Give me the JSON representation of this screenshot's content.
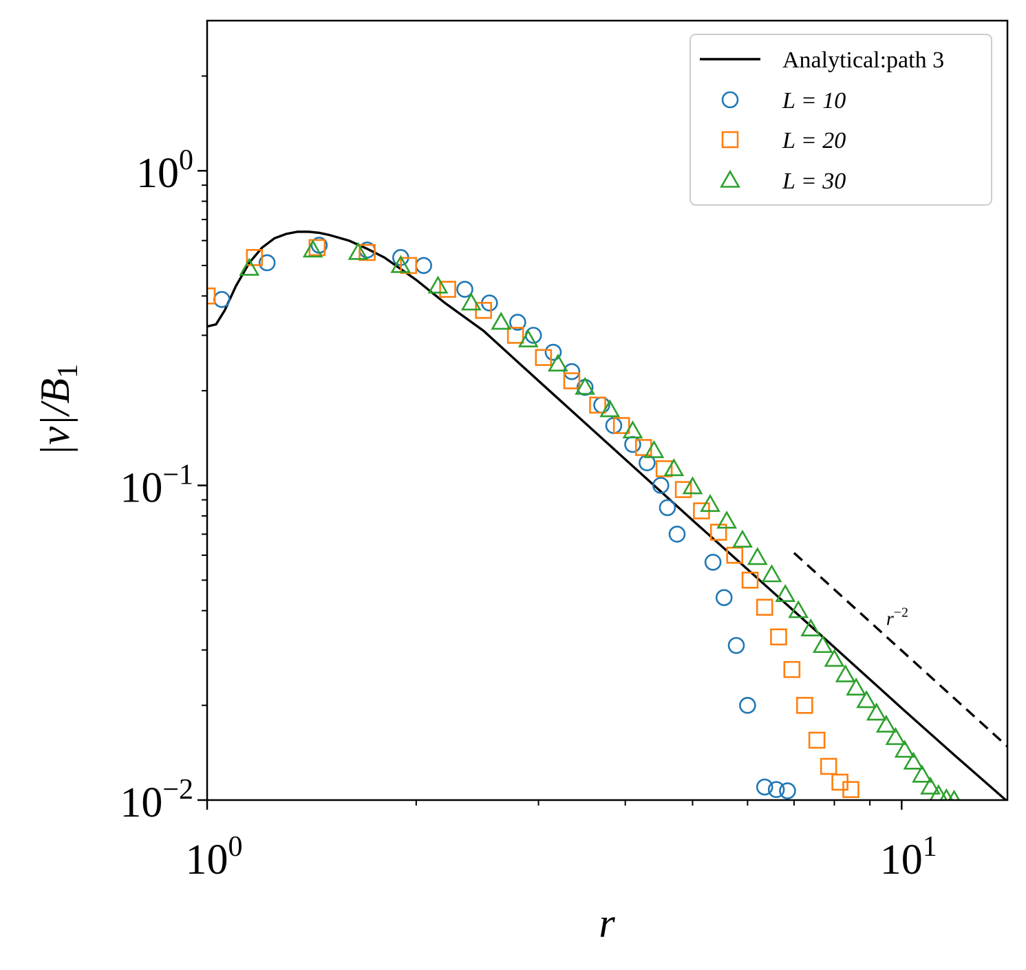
{
  "chart_data": {
    "type": "scatter",
    "title": "",
    "xlabel": "r",
    "ylabel": "|v|/B",
    "ylabel_subscript": "1",
    "xscale": "log",
    "yscale": "log",
    "xlim": [
      1.0,
      14.2
    ],
    "ylim": [
      0.01,
      3.0
    ],
    "x_major_ticks": [
      {
        "value": 1,
        "base": "10",
        "exp": "0"
      },
      {
        "value": 10,
        "base": "10",
        "exp": "1"
      }
    ],
    "y_major_ticks": [
      {
        "value": 1,
        "base": "10",
        "exp": "0"
      },
      {
        "value": 0.1,
        "base": "10",
        "exp": "−1"
      },
      {
        "value": 0.01,
        "base": "10",
        "exp": "−2"
      }
    ],
    "legend_position": "top-right",
    "colors": {
      "analytical": "#000000",
      "L10": "#1f77b4",
      "L20": "#ff7f0e",
      "L30": "#2ca02c"
    },
    "series": [
      {
        "name": "Analytical:path 3",
        "kind": "line",
        "color": "#000000",
        "x": [
          1.0,
          1.03,
          1.06,
          1.1,
          1.15,
          1.2,
          1.25,
          1.3,
          1.35,
          1.4,
          1.45,
          1.5,
          1.6,
          1.7,
          1.8,
          2.0,
          2.2,
          2.5,
          3.0,
          3.5,
          4.0,
          5.0,
          6.0,
          8.0,
          10.0,
          12.0,
          14.2
        ],
        "y": [
          0.32,
          0.325,
          0.36,
          0.43,
          0.51,
          0.57,
          0.61,
          0.63,
          0.64,
          0.64,
          0.635,
          0.625,
          0.6,
          0.565,
          0.53,
          0.45,
          0.38,
          0.31,
          0.215,
          0.158,
          0.121,
          0.0775,
          0.0541,
          0.0306,
          0.0196,
          0.0137,
          0.0099
        ]
      },
      {
        "name": "L = 10",
        "kind": "scatter",
        "marker": "circle",
        "color": "#1f77b4",
        "x": [
          1.05,
          1.22,
          1.45,
          1.7,
          1.9,
          2.05,
          2.35,
          2.55,
          2.8,
          2.95,
          3.15,
          3.35,
          3.5,
          3.7,
          3.85,
          4.1,
          4.3,
          4.5,
          4.6,
          4.75,
          5.35,
          5.55,
          5.78,
          6.0,
          6.35,
          6.6,
          6.85
        ],
        "y": [
          0.39,
          0.51,
          0.58,
          0.56,
          0.53,
          0.5,
          0.42,
          0.38,
          0.33,
          0.3,
          0.265,
          0.23,
          0.205,
          0.18,
          0.155,
          0.135,
          0.118,
          0.1,
          0.085,
          0.07,
          0.057,
          0.044,
          0.031,
          0.02,
          0.011,
          0.0108,
          0.0107
        ]
      },
      {
        "name": "L = 20",
        "kind": "scatter",
        "marker": "square",
        "color": "#ff7f0e",
        "x": [
          1.0,
          1.17,
          1.44,
          1.7,
          1.95,
          2.22,
          2.5,
          2.78,
          3.05,
          3.35,
          3.65,
          3.95,
          4.25,
          4.55,
          4.85,
          5.15,
          5.45,
          5.75,
          6.05,
          6.35,
          6.65,
          6.95,
          7.25,
          7.55,
          7.85,
          8.15,
          8.45
        ],
        "y": [
          0.4,
          0.53,
          0.57,
          0.55,
          0.5,
          0.42,
          0.36,
          0.3,
          0.255,
          0.215,
          0.18,
          0.155,
          0.132,
          0.113,
          0.097,
          0.083,
          0.071,
          0.06,
          0.05,
          0.041,
          0.033,
          0.026,
          0.02,
          0.0155,
          0.0128,
          0.0114,
          0.0108
        ]
      },
      {
        "name": "L = 30",
        "kind": "scatter",
        "marker": "triangle",
        "color": "#2ca02c",
        "x": [
          1.15,
          1.42,
          1.65,
          1.9,
          2.15,
          2.4,
          2.65,
          2.9,
          3.2,
          3.5,
          3.8,
          4.1,
          4.4,
          4.7,
          5.0,
          5.3,
          5.6,
          5.9,
          6.2,
          6.5,
          6.8,
          7.1,
          7.4,
          7.7,
          8.0,
          8.3,
          8.6,
          8.9,
          9.2,
          9.5,
          9.8,
          10.1,
          10.4,
          10.7,
          11.0,
          11.3,
          11.6,
          11.9
        ],
        "y": [
          0.49,
          0.56,
          0.55,
          0.5,
          0.43,
          0.38,
          0.33,
          0.29,
          0.243,
          0.205,
          0.174,
          0.149,
          0.129,
          0.113,
          0.099,
          0.087,
          0.077,
          0.067,
          0.059,
          0.052,
          0.045,
          0.04,
          0.035,
          0.031,
          0.028,
          0.025,
          0.0227,
          0.0207,
          0.0189,
          0.0173,
          0.0158,
          0.0144,
          0.0132,
          0.012,
          0.011,
          0.0104,
          0.0101,
          0.01
        ]
      },
      {
        "name": "r^-2 reference",
        "kind": "dashed-line",
        "color": "#000000",
        "x": [
          7.0,
          14.2
        ],
        "y": [
          0.061,
          0.0148
        ]
      }
    ],
    "annotations": [
      {
        "text_base": "r",
        "text_exp": "−2",
        "x": 9.5,
        "y": 0.036
      }
    ]
  },
  "legend": {
    "items": [
      {
        "label": "Analytical:path 3",
        "kind": "line",
        "color": "#000000"
      },
      {
        "label": "L = 10",
        "kind": "circle",
        "color": "#1f77b4"
      },
      {
        "label": "L = 20",
        "kind": "square",
        "color": "#ff7f0e"
      },
      {
        "label": "L = 30",
        "kind": "triangle",
        "color": "#2ca02c"
      }
    ]
  }
}
